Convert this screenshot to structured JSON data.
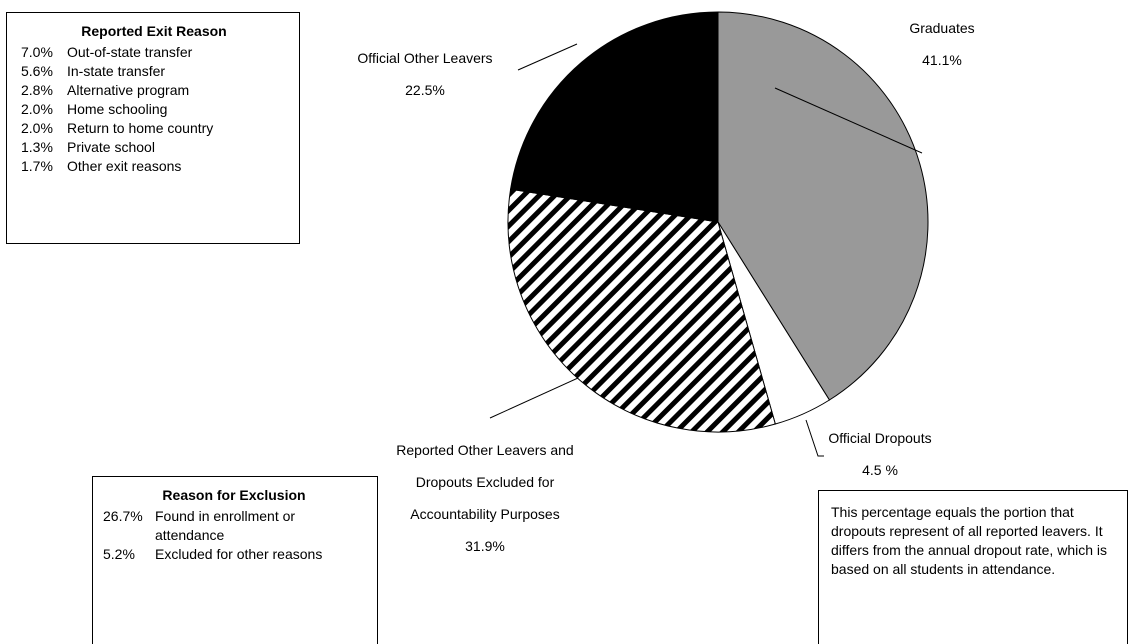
{
  "chart_data": {
    "type": "pie",
    "categories": [
      "Graduates",
      "Official Dropouts",
      "Reported Other Leavers and Dropouts Excluded for Accountability Purposes",
      "Official Other Leavers"
    ],
    "values": [
      41.1,
      4.5,
      31.9,
      22.5
    ],
    "value_labels": [
      "41.1%",
      "4.5 %",
      "31.9%",
      "22.5%"
    ],
    "colors": [
      "#999999",
      "#ffffff",
      "#000000",
      "#000000"
    ],
    "hatched": [
      false,
      false,
      true,
      false
    ]
  },
  "exit_box": {
    "title": "Reported Exit Reason",
    "items": [
      {
        "pct": "7.0%",
        "label": "Out-of-state transfer"
      },
      {
        "pct": "5.6%",
        "label": "In-state transfer"
      },
      {
        "pct": "2.8%",
        "label": "Alternative program"
      },
      {
        "pct": "2.0%",
        "label": "Home schooling"
      },
      {
        "pct": "2.0%",
        "label": "Return to home country"
      },
      {
        "pct": "1.3%",
        "label": "Private school"
      },
      {
        "pct": "1.7%",
        "label": "Other exit reasons"
      }
    ]
  },
  "exclusion_box": {
    "title": "Reason for Exclusion",
    "items": [
      {
        "pct": "26.7%",
        "label": "Found in enrollment or attendance"
      },
      {
        "pct": "5.2%",
        "label": "Excluded for other reasons"
      }
    ]
  },
  "note": "This percentage equals the portion that dropouts represent of all reported leavers. It differs from the annual dropout rate, which is based on all students in attendance."
}
